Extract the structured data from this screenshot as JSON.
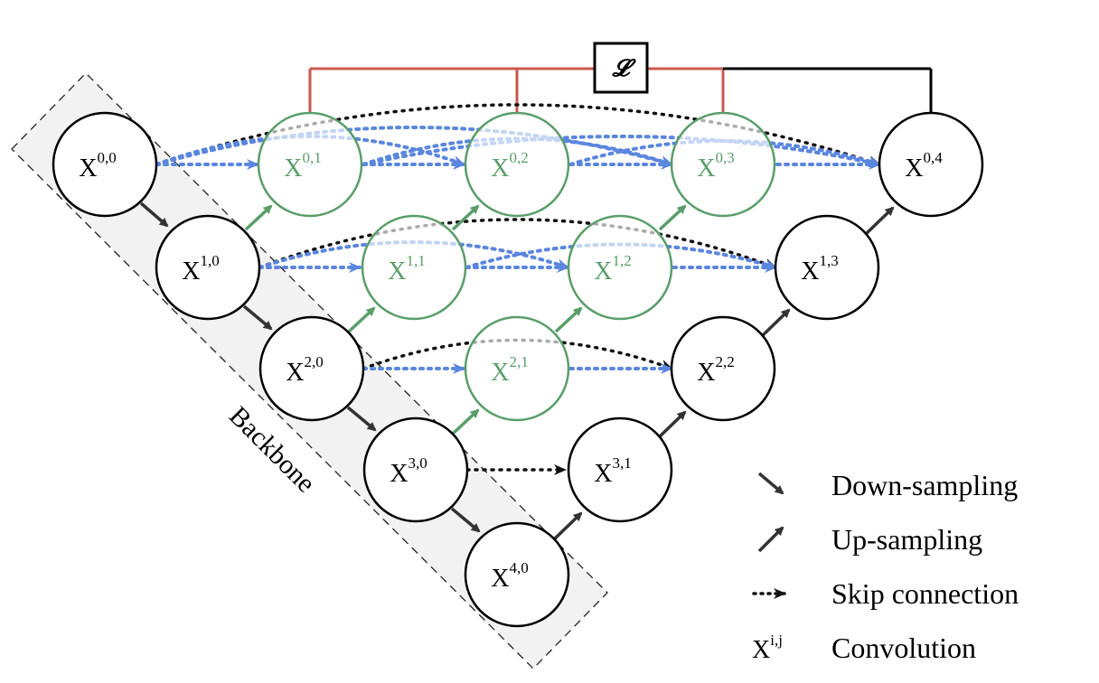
{
  "colors": {
    "encoder": "#000000",
    "nested": "#5a9e6a",
    "skip_blue": "#5b86de",
    "skip_black": "#111111",
    "loss_link": "#c9584e",
    "backbone_fill": "#f2f2f2",
    "arrow_dark": "#333333"
  },
  "backbone_label": "Backbone",
  "loss_symbol": "𝓛",
  "nodes": [
    {
      "id": "X00",
      "base": "X",
      "sup": "0,0",
      "kind": "encoder"
    },
    {
      "id": "X10",
      "base": "X",
      "sup": "1,0",
      "kind": "encoder"
    },
    {
      "id": "X20",
      "base": "X",
      "sup": "2,0",
      "kind": "encoder"
    },
    {
      "id": "X30",
      "base": "X",
      "sup": "3,0",
      "kind": "encoder"
    },
    {
      "id": "X40",
      "base": "X",
      "sup": "4,0",
      "kind": "encoder"
    },
    {
      "id": "X01",
      "base": "X",
      "sup": "0,1",
      "kind": "nested"
    },
    {
      "id": "X11",
      "base": "X",
      "sup": "1,1",
      "kind": "nested"
    },
    {
      "id": "X21",
      "base": "X",
      "sup": "2,1",
      "kind": "nested"
    },
    {
      "id": "X02",
      "base": "X",
      "sup": "0,2",
      "kind": "nested"
    },
    {
      "id": "X12",
      "base": "X",
      "sup": "1,2",
      "kind": "nested"
    },
    {
      "id": "X03",
      "base": "X",
      "sup": "0,3",
      "kind": "nested"
    },
    {
      "id": "X31",
      "base": "X",
      "sup": "3,1",
      "kind": "decoder"
    },
    {
      "id": "X22",
      "base": "X",
      "sup": "2,2",
      "kind": "decoder"
    },
    {
      "id": "X13",
      "base": "X",
      "sup": "1,3",
      "kind": "decoder"
    },
    {
      "id": "X04",
      "base": "X",
      "sup": "0,4",
      "kind": "decoder"
    }
  ],
  "legend": {
    "down": "Down-sampling",
    "up": "Up-sampling",
    "skip": "Skip connection",
    "conv_symbol": "X",
    "conv_sup": "i,j",
    "conv": "Convolution"
  }
}
